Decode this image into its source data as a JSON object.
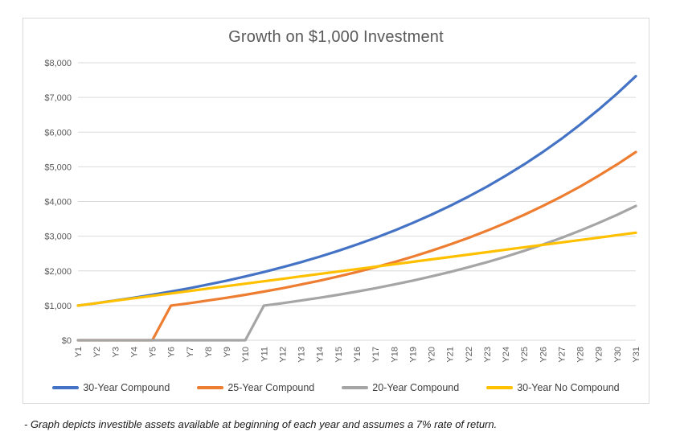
{
  "chart_data": {
    "type": "line",
    "title": "Growth on $1,000 Investment",
    "categories": [
      "Y1",
      "Y2",
      "Y3",
      "Y4",
      "Y5",
      "Y6",
      "Y7",
      "Y8",
      "Y9",
      "Y10",
      "Y11",
      "Y12",
      "Y13",
      "Y14",
      "Y15",
      "Y16",
      "Y17",
      "Y18",
      "Y19",
      "Y20",
      "Y21",
      "Y22",
      "Y23",
      "Y24",
      "Y25",
      "Y26",
      "Y27",
      "Y28",
      "Y29",
      "Y30",
      "Y31"
    ],
    "series": [
      {
        "name": "30-Year Compound",
        "color": "#4472C4",
        "values": [
          1000,
          1070,
          1145,
          1225,
          1311,
          1403,
          1501,
          1606,
          1718,
          1838,
          1967,
          2105,
          2252,
          2410,
          2579,
          2759,
          2952,
          3159,
          3380,
          3617,
          3870,
          4141,
          4430,
          4741,
          5072,
          5427,
          5807,
          6214,
          6649,
          7114,
          7612
        ]
      },
      {
        "name": "25-Year Compound",
        "color": "#ED7D31",
        "values": [
          0,
          0,
          0,
          0,
          0,
          1000,
          1070,
          1145,
          1225,
          1311,
          1403,
          1501,
          1606,
          1718,
          1838,
          1967,
          2105,
          2252,
          2410,
          2579,
          2759,
          2952,
          3159,
          3380,
          3617,
          3870,
          4141,
          4430,
          4741,
          5072,
          5427
        ]
      },
      {
        "name": "20-Year Compound",
        "color": "#A5A5A5",
        "values": [
          0,
          0,
          0,
          0,
          0,
          0,
          0,
          0,
          0,
          0,
          1000,
          1070,
          1145,
          1225,
          1311,
          1403,
          1501,
          1606,
          1718,
          1838,
          1967,
          2105,
          2252,
          2410,
          2579,
          2759,
          2952,
          3159,
          3380,
          3617,
          3870
        ]
      },
      {
        "name": "30-Year No Compound",
        "color": "#FFC000",
        "values": [
          1000,
          1070,
          1140,
          1210,
          1280,
          1350,
          1420,
          1490,
          1560,
          1630,
          1700,
          1770,
          1840,
          1910,
          1980,
          2050,
          2120,
          2190,
          2260,
          2330,
          2400,
          2470,
          2540,
          2610,
          2680,
          2750,
          2820,
          2890,
          2960,
          3030,
          3100
        ]
      }
    ],
    "y_axis": {
      "min": 0,
      "max": 8000,
      "tick_interval": 1000,
      "tick_labels": [
        "$0",
        "$1,000",
        "$2,000",
        "$3,000",
        "$4,000",
        "$5,000",
        "$6,000",
        "$7,000",
        "$8,000"
      ]
    },
    "grid": true,
    "legend_position": "bottom",
    "gridline_color": "#D9D9D9",
    "axis_text_color": "#595959"
  },
  "footnote": "- Graph depicts investible assets available at beginning of each year and assumes a 7% rate of return."
}
